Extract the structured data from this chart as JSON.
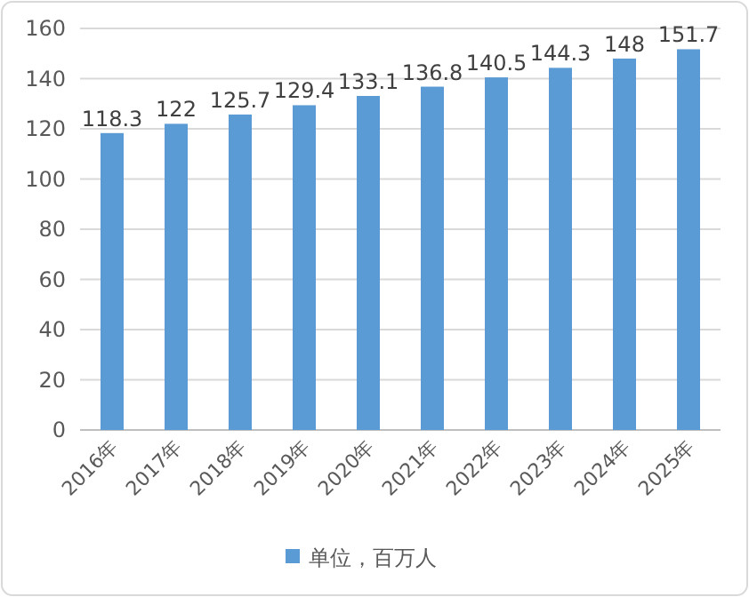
{
  "chart_data": {
    "type": "bar",
    "categories": [
      "2016年",
      "2017年",
      "2018年",
      "2019年",
      "2020年",
      "2021年",
      "2022年",
      "2023年",
      "2024年",
      "2025年"
    ],
    "series": [
      {
        "name": "单位，百万人",
        "color": "#5b9bd5",
        "values": [
          118.3,
          122,
          125.7,
          129.4,
          133.1,
          136.8,
          140.5,
          144.3,
          148,
          151.7
        ]
      }
    ],
    "ylim": [
      0,
      160
    ],
    "yticks": [
      0,
      20,
      40,
      60,
      80,
      100,
      120,
      140,
      160
    ],
    "grid": "y",
    "legend": "bottom",
    "data_labels": true
  }
}
